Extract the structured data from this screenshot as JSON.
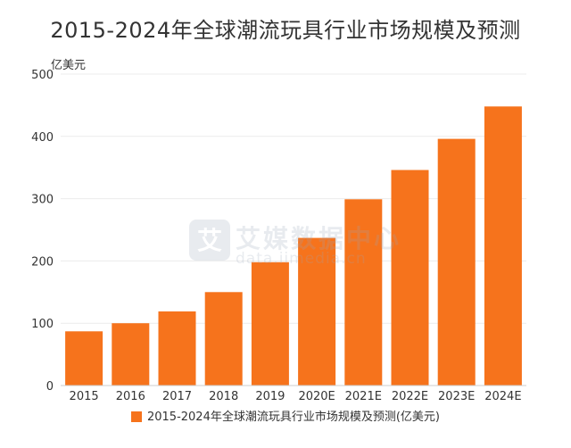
{
  "chart_data": {
    "type": "bar",
    "title": "2015-2024年全球潮流玩具行业市场规模及预测",
    "ylabel": "亿美元",
    "xlabel": "",
    "categories": [
      "2015",
      "2016",
      "2017",
      "2018",
      "2019",
      "2020E",
      "2021E",
      "2022E",
      "2023E",
      "2024E"
    ],
    "values": [
      87,
      100,
      119,
      150,
      198,
      237,
      299,
      346,
      396,
      448
    ],
    "series": [
      {
        "name": "2015-2024年全球潮流玩具行业市场规模及预测(亿美元)",
        "values": [
          87,
          100,
          119,
          150,
          198,
          237,
          299,
          346,
          396,
          448
        ]
      }
    ],
    "ylim": [
      0,
      500
    ],
    "yticks": [
      0,
      100,
      200,
      300,
      400,
      500
    ],
    "grid": true,
    "legend_position": "bottom",
    "bar_color": "#f6731c"
  },
  "watermark": {
    "logo_glyph": "艾",
    "text_cn": "艾媒数据中心",
    "text_en": "data.iimedia.cn"
  }
}
